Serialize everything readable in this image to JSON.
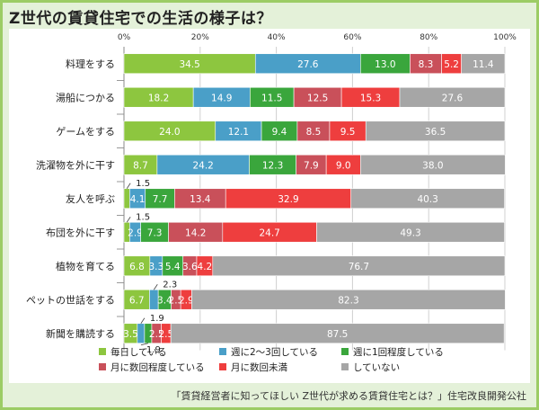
{
  "title": "Z世代の賃貸住宅での生活の様子は？",
  "footer": "「賃貸経営者に知ってほしい Z世代が求める賃貸住宅とは？」住宅改良開発公社",
  "colors": {
    "background": "#e4f1d9",
    "frame": "#9ccc65",
    "series": [
      "#8dc63f",
      "#4a9fc8",
      "#3aa63c",
      "#c9505a",
      "#ee3e3e",
      "#a6a6a6"
    ]
  },
  "chart_data": {
    "type": "bar",
    "orientation": "horizontal",
    "stacked": true,
    "title": "Z世代の賃貸住宅での生活の様子は？",
    "xlim": [
      0,
      100
    ],
    "xticks": [
      "0%",
      "20%",
      "40%",
      "60%",
      "80%",
      "100%"
    ],
    "grid": true,
    "legend_position": "bottom",
    "categories": [
      "料理をする",
      "湯船につかる",
      "ゲームをする",
      "洗濯物を外に干す",
      "友人を呼ぶ",
      "布団を外に干す",
      "植物を育てる",
      "ペットの世話をする",
      "新聞を購読する"
    ],
    "series": [
      {
        "name": "毎日している",
        "values": [
          34.5,
          18.2,
          24.0,
          8.7,
          1.5,
          1.5,
          6.8,
          6.7,
          3.5
        ]
      },
      {
        "name": "週に2～3回している",
        "values": [
          27.6,
          14.9,
          12.1,
          24.2,
          4.1,
          2.9,
          3.3,
          2.3,
          1.9
        ]
      },
      {
        "name": "週に1回程度している",
        "values": [
          13.0,
          11.5,
          9.4,
          12.3,
          7.7,
          7.3,
          5.4,
          3.4,
          1.9
        ]
      },
      {
        "name": "月に数回程度している",
        "values": [
          8.3,
          12.5,
          8.5,
          7.9,
          13.4,
          14.2,
          3.6,
          2.5,
          2.5
        ]
      },
      {
        "name": "月に数回未満",
        "values": [
          5.2,
          15.3,
          9.5,
          9.0,
          32.9,
          24.7,
          4.2,
          2.9,
          2.5
        ]
      },
      {
        "name": "していない",
        "values": [
          11.4,
          27.6,
          36.5,
          38.0,
          40.3,
          49.3,
          76.7,
          82.3,
          87.5
        ]
      }
    ],
    "value_labels": [
      [
        "34.5",
        "27.6",
        "13.0",
        "8.3",
        "5.2",
        "11.4"
      ],
      [
        "18.2",
        "14.9",
        "11.5",
        "12.5",
        "15.3",
        "27.6"
      ],
      [
        "24.0",
        "12.1",
        "9.4",
        "8.5",
        "9.5",
        "36.5"
      ],
      [
        "8.7",
        "24.2",
        "12.3",
        "7.9",
        "9.0",
        "38.0"
      ],
      [
        "1.5",
        "4.1",
        "7.7",
        "13.4",
        "32.9",
        "40.3"
      ],
      [
        "1.5",
        "2.9",
        "7.3",
        "14.2",
        "24.7",
        "49.3"
      ],
      [
        "6.8",
        "3.3",
        "5.4",
        "3.6",
        "4.2",
        "76.7"
      ],
      [
        "6.7",
        "2.3",
        "3.4",
        "2.5",
        "2.9",
        "82.3"
      ],
      [
        "3.5",
        "1.9",
        "1.9",
        "2.5",
        "2.5",
        "87.5"
      ]
    ]
  }
}
